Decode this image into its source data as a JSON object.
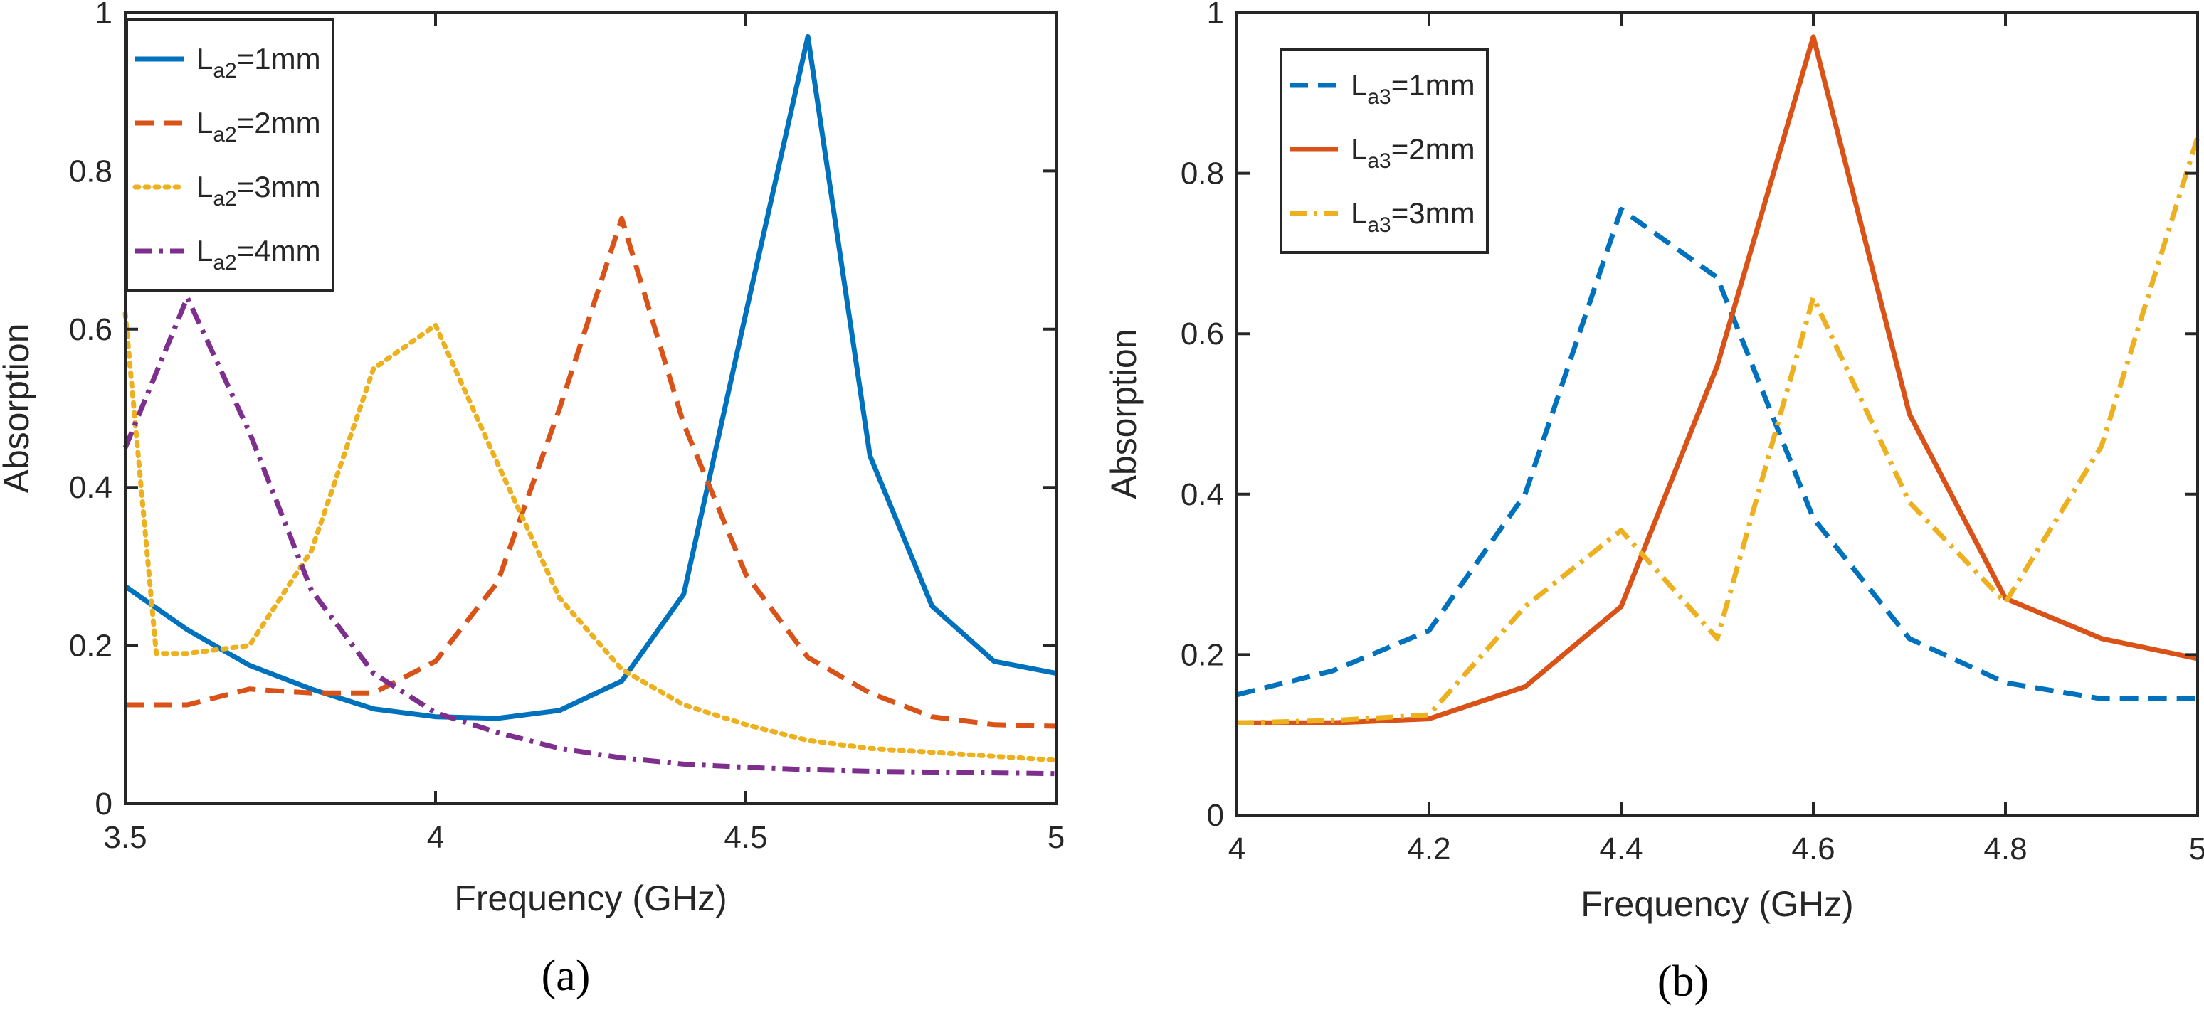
{
  "colors": {
    "blue": "#0072bd",
    "orange": "#d95319",
    "yellow": "#edb120",
    "purple": "#7e2f8e"
  },
  "chart_data": [
    {
      "type": "line",
      "caption": "(a)",
      "xlabel": "Frequency (GHz)",
      "ylabel": "Absorption",
      "xlim": [
        3.5,
        5
      ],
      "ylim": [
        0,
        1
      ],
      "xticks": [
        "3.5",
        "4",
        "4.5",
        "5"
      ],
      "yticks": [
        "0",
        "0.2",
        "0.4",
        "0.6",
        "0.8",
        "1"
      ],
      "legend_position": "top-left",
      "series": [
        {
          "name_main": "L",
          "name_sub": "a2",
          "name_rest": "=1mm",
          "style": "solid",
          "color": "#0072bd",
          "x": [
            3.5,
            3.6,
            3.7,
            3.8,
            3.9,
            4.0,
            4.1,
            4.2,
            4.3,
            4.4,
            4.5,
            4.6,
            4.7,
            4.8,
            4.9,
            5.0
          ],
          "y": [
            0.275,
            0.22,
            0.175,
            0.145,
            0.12,
            0.11,
            0.108,
            0.118,
            0.155,
            0.265,
            0.62,
            0.97,
            0.44,
            0.25,
            0.18,
            0.165
          ]
        },
        {
          "name_main": "L",
          "name_sub": "a2",
          "name_rest": "=2mm",
          "style": "dashed",
          "color": "#d95319",
          "x": [
            3.5,
            3.6,
            3.7,
            3.8,
            3.9,
            4.0,
            4.1,
            4.2,
            4.3,
            4.4,
            4.5,
            4.6,
            4.7,
            4.8,
            4.9,
            5.0
          ],
          "y": [
            0.125,
            0.125,
            0.145,
            0.14,
            0.14,
            0.18,
            0.28,
            0.5,
            0.74,
            0.48,
            0.29,
            0.185,
            0.14,
            0.11,
            0.1,
            0.098
          ]
        },
        {
          "name_main": "L",
          "name_sub": "a2",
          "name_rest": "=3mm",
          "style": "dotted",
          "color": "#edb120",
          "x": [
            3.5,
            3.55,
            3.6,
            3.7,
            3.8,
            3.9,
            4.0,
            4.1,
            4.2,
            4.3,
            4.4,
            4.5,
            4.6,
            4.7,
            4.8,
            4.9,
            5.0
          ],
          "y": [
            0.62,
            0.19,
            0.19,
            0.2,
            0.32,
            0.55,
            0.605,
            0.43,
            0.26,
            0.17,
            0.125,
            0.1,
            0.08,
            0.07,
            0.065,
            0.06,
            0.055
          ]
        },
        {
          "name_main": "L",
          "name_sub": "a2",
          "name_rest": "=4mm",
          "style": "dashdot",
          "color": "#7e2f8e",
          "x": [
            3.5,
            3.6,
            3.7,
            3.8,
            3.9,
            4.0,
            4.1,
            4.2,
            4.3,
            4.4,
            4.5,
            4.6,
            4.7,
            4.8,
            4.9,
            5.0
          ],
          "y": [
            0.45,
            0.64,
            0.47,
            0.27,
            0.165,
            0.115,
            0.09,
            0.07,
            0.058,
            0.05,
            0.046,
            0.043,
            0.041,
            0.04,
            0.039,
            0.038
          ]
        }
      ]
    },
    {
      "type": "line",
      "caption": "(b)",
      "xlabel": "Frequency (GHz)",
      "ylabel": "Absorption",
      "xlim": [
        4,
        5
      ],
      "ylim": [
        0,
        1
      ],
      "xticks": [
        "4",
        "4.2",
        "4.4",
        "4.6",
        "4.8",
        "5"
      ],
      "yticks": [
        "0",
        "0.2",
        "0.4",
        "0.6",
        "0.8",
        "1"
      ],
      "legend_position": "top-left",
      "series": [
        {
          "name_main": "L",
          "name_sub": "a3",
          "name_rest": "=1mm",
          "style": "dashed",
          "color": "#0072bd",
          "x": [
            4.0,
            4.1,
            4.2,
            4.3,
            4.4,
            4.5,
            4.6,
            4.7,
            4.8,
            4.9,
            5.0
          ],
          "y": [
            0.15,
            0.18,
            0.23,
            0.4,
            0.755,
            0.67,
            0.37,
            0.22,
            0.165,
            0.145,
            0.145
          ]
        },
        {
          "name_main": "L",
          "name_sub": "a3",
          "name_rest": "=2mm",
          "style": "solid",
          "color": "#d95319",
          "x": [
            4.0,
            4.1,
            4.2,
            4.3,
            4.4,
            4.5,
            4.6,
            4.7,
            4.8,
            4.9,
            5.0
          ],
          "y": [
            0.115,
            0.115,
            0.12,
            0.16,
            0.26,
            0.56,
            0.97,
            0.5,
            0.27,
            0.22,
            0.195
          ]
        },
        {
          "name_main": "L",
          "name_sub": "a3",
          "name_rest": "=3mm",
          "style": "dashdot",
          "color": "#edb120",
          "x": [
            4.0,
            4.1,
            4.2,
            4.3,
            4.4,
            4.5,
            4.6,
            4.7,
            4.8,
            4.9,
            5.0
          ],
          "y": [
            0.115,
            0.118,
            0.125,
            0.26,
            0.355,
            0.22,
            0.645,
            0.39,
            0.265,
            0.46,
            0.845
          ]
        }
      ]
    }
  ]
}
